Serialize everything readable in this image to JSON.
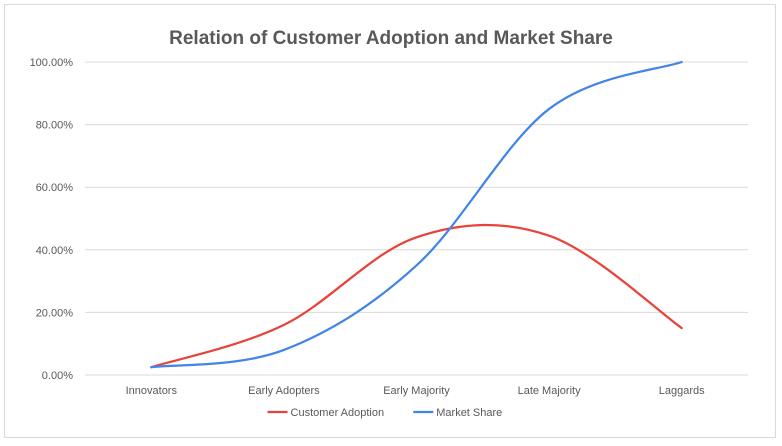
{
  "chart_data": {
    "type": "line",
    "title": "Relation of Customer Adoption and Market Share",
    "xlabel": "",
    "ylabel": "",
    "categories": [
      "Innovators",
      "Early Adopters",
      "Early Majority",
      "Late Majority",
      "Laggards"
    ],
    "series": [
      {
        "name": "Customer Adoption",
        "color": "#e8433a",
        "values": [
          2.5,
          16.0,
          44.0,
          44.5,
          15.0
        ]
      },
      {
        "name": "Market Share",
        "color": "#4285e8",
        "values": [
          2.5,
          8.0,
          35.0,
          85.0,
          100.0
        ]
      }
    ],
    "ylim": [
      0,
      100
    ],
    "yticks": [
      0,
      20,
      40,
      60,
      80,
      100
    ],
    "ytick_labels": [
      "0.00%",
      "20.00%",
      "40.00%",
      "60.00%",
      "80.00%",
      "100.00%"
    ],
    "smooth": true,
    "grid": true,
    "legend_position": "bottom"
  }
}
